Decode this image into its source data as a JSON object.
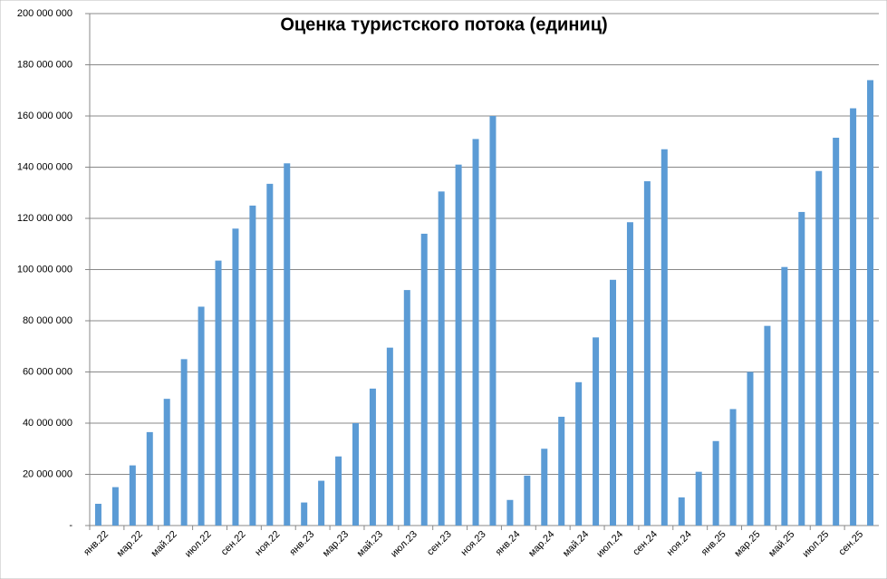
{
  "chart_data": {
    "type": "bar",
    "title": "Оценка туристского потока (единиц)",
    "categories": [
      "янв.22",
      null,
      "мар.22",
      null,
      "май.22",
      null,
      "июл.22",
      null,
      "сен.22",
      null,
      "ноя.22",
      null,
      "янв.23",
      null,
      "мар.23",
      null,
      "май.23",
      null,
      "июл.23",
      null,
      "сен.23",
      null,
      "ноя.23",
      null,
      "янв.24",
      null,
      "мар.24",
      null,
      "май.24",
      null,
      "июл.24",
      null,
      "сен.24",
      null,
      "ноя.24",
      null,
      "янв.25",
      null,
      "мар.25",
      null,
      "май.25",
      null,
      "июл.25",
      null,
      "сен.25",
      null
    ],
    "values": [
      8500000,
      15000000,
      23500000,
      36500000,
      49500000,
      65000000,
      85500000,
      103500000,
      116000000,
      125000000,
      133500000,
      141500000,
      9000000,
      17500000,
      27000000,
      40000000,
      53500000,
      69500000,
      92000000,
      114000000,
      130500000,
      141000000,
      151000000,
      160000000,
      10000000,
      19500000,
      30000000,
      42500000,
      56000000,
      73500000,
      96000000,
      118500000,
      134500000,
      147000000,
      11000000,
      21000000,
      33000000,
      45500000,
      60000000,
      78000000,
      101000000,
      122500000,
      138500000,
      151500000,
      163000000,
      174000000
    ],
    "color": "#5b9bd5",
    "ylim": [
      0,
      200000000
    ],
    "yticks": [
      {
        "value": 0,
        "label": "-"
      },
      {
        "value": 20000000,
        "label": "20 000 000"
      },
      {
        "value": 40000000,
        "label": "40 000 000"
      },
      {
        "value": 60000000,
        "label": "60 000 000"
      },
      {
        "value": 80000000,
        "label": "80 000 000"
      },
      {
        "value": 100000000,
        "label": "100 000 000"
      },
      {
        "value": 120000000,
        "label": "120 000 000"
      },
      {
        "value": 140000000,
        "label": "140 000 000"
      },
      {
        "value": 160000000,
        "label": "160 000 000"
      },
      {
        "value": 180000000,
        "label": "180 000 000"
      },
      {
        "value": 200000000,
        "label": "200 000 000"
      }
    ],
    "grid": true
  }
}
